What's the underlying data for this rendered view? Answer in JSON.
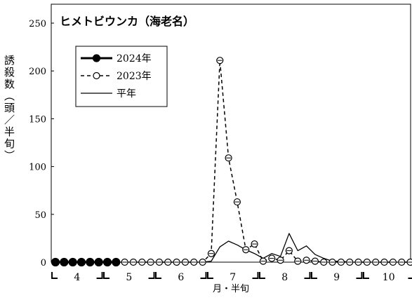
{
  "chart_data": {
    "type": "line",
    "title": "ヒメトビウンカ（海老名）",
    "xlabel": "月・半旬",
    "ylabel": "誘殺数（頭／半旬）",
    "ylim": [
      0,
      250
    ],
    "yticks": [
      0,
      50,
      100,
      150,
      200,
      250
    ],
    "x_count": 42,
    "month_labels": [
      {
        "label": "4",
        "start": 1,
        "end": 6
      },
      {
        "label": "5",
        "start": 7,
        "end": 12
      },
      {
        "label": "6",
        "start": 13,
        "end": 18
      },
      {
        "label": "7",
        "start": 19,
        "end": 24
      },
      {
        "label": "8",
        "start": 25,
        "end": 30
      },
      {
        "label": "9",
        "start": 31,
        "end": 36
      },
      {
        "label": "10",
        "start": 37,
        "end": 42
      }
    ],
    "legend_position": "top-left",
    "series": [
      {
        "name": "2024年",
        "style": "solid-bold-filled",
        "x": [
          1,
          2,
          3,
          4,
          5,
          6,
          7,
          8
        ],
        "values": [
          0,
          0,
          0,
          0,
          0,
          0,
          0,
          0
        ]
      },
      {
        "name": "2023年",
        "style": "dashed-open",
        "x": [
          9,
          10,
          11,
          12,
          13,
          14,
          15,
          16,
          17,
          18,
          19,
          20,
          21,
          22,
          23,
          24,
          25,
          26,
          27,
          28,
          29,
          30,
          31,
          32,
          33,
          34,
          35,
          36,
          37,
          38,
          39,
          40,
          41,
          42
        ],
        "values": [
          0,
          0,
          0,
          0,
          0,
          0,
          0,
          0,
          0,
          0,
          9,
          211,
          109,
          63,
          13,
          19,
          1,
          4,
          2,
          12,
          1,
          2,
          1,
          0,
          0,
          0,
          0,
          0,
          0,
          0,
          0,
          0,
          0,
          0
        ]
      },
      {
        "name": "平年",
        "style": "solid-thin",
        "x": [
          1,
          2,
          3,
          4,
          5,
          6,
          7,
          8,
          9,
          10,
          11,
          12,
          13,
          14,
          15,
          16,
          17,
          18,
          19,
          20,
          21,
          22,
          23,
          24,
          25,
          26,
          27,
          28,
          29,
          30,
          31,
          32,
          33,
          34,
          35,
          36,
          37,
          38,
          39,
          40,
          41,
          42
        ],
        "values": [
          0,
          0,
          0,
          0,
          0,
          0,
          0,
          0,
          0,
          0,
          0,
          0,
          0,
          0,
          0,
          0,
          0,
          0,
          1,
          16,
          22,
          18,
          13,
          9,
          4,
          9,
          6,
          30,
          12,
          17,
          8,
          4,
          1,
          1,
          0,
          0,
          0,
          0,
          0,
          0,
          0,
          0
        ]
      }
    ]
  }
}
